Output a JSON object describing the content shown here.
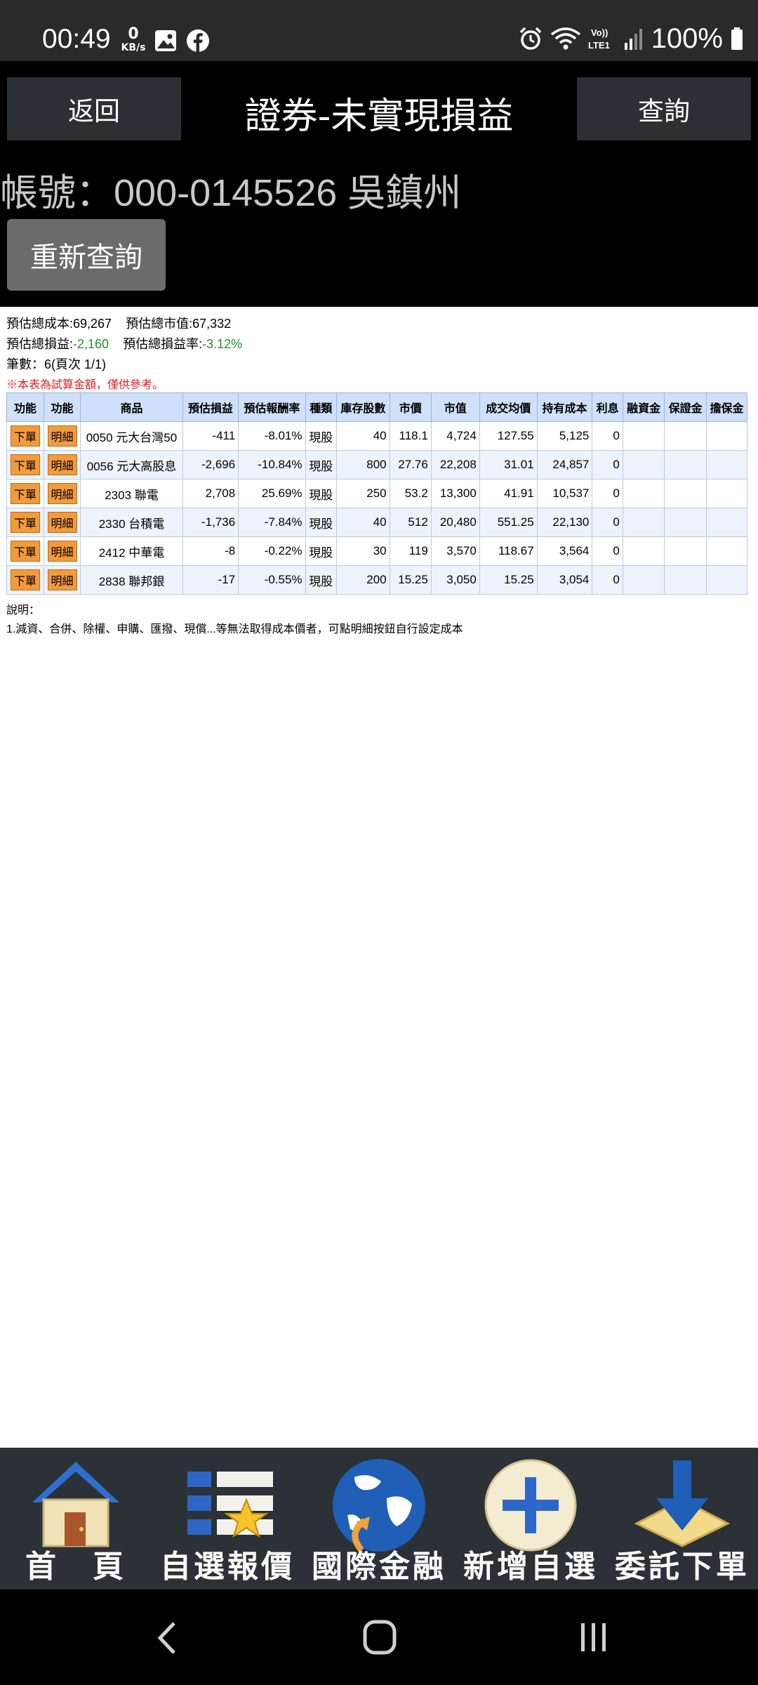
{
  "status_bar": {
    "time": "00:49",
    "net_speed_value": "0",
    "net_speed_unit": "KB/s",
    "battery": "100%"
  },
  "header": {
    "back_label": "返回",
    "title": "證券-未實現損益",
    "query_label": "查詢",
    "account": "帳號：000-0145526 吳鎮州",
    "requery_label": "重新查詢"
  },
  "summary": {
    "cost_label": "預估總成本:",
    "cost_value": "69,267",
    "market_label": "預估總市值:",
    "market_value": "67,332",
    "pnl_label": "預估總損益:",
    "pnl_value": "-2,160",
    "pnl_rate_label": "預估總損益率:",
    "pnl_rate_value": "-3.12%",
    "count_text": "筆數：6(頁次 1/1)",
    "disclaimer": "※本表為試算金額，僅供參考。"
  },
  "table": {
    "headers": [
      "功能",
      "功能",
      "商品",
      "預估損益",
      "預估報酬率",
      "種類",
      "庫存股數",
      "市價",
      "市值",
      "成交均價",
      "持有成本",
      "利息",
      "融資金",
      "保證金",
      "擔保金"
    ],
    "order_label": "下單",
    "detail_label": "明細",
    "rows": [
      {
        "product": "0050 元大台灣50",
        "pnl": "-411",
        "rate": "-8.01%",
        "kind": "現股",
        "qty": "40",
        "price": "118.1",
        "value": "4,724",
        "avg": "127.55",
        "cost": "5,125",
        "interest": "0",
        "trend": "neg"
      },
      {
        "product": "0056 元大高股息",
        "pnl": "-2,696",
        "rate": "-10.84%",
        "kind": "現股",
        "qty": "800",
        "price": "27.76",
        "value": "22,208",
        "avg": "31.01",
        "cost": "24,857",
        "interest": "0",
        "trend": "neg"
      },
      {
        "product": "2303 聯電",
        "pnl": "2,708",
        "rate": "25.69%",
        "kind": "現股",
        "qty": "250",
        "price": "53.2",
        "value": "13,300",
        "avg": "41.91",
        "cost": "10,537",
        "interest": "0",
        "trend": "pos"
      },
      {
        "product": "2330 台積電",
        "pnl": "-1,736",
        "rate": "-7.84%",
        "kind": "現股",
        "qty": "40",
        "price": "512",
        "value": "20,480",
        "avg": "551.25",
        "cost": "22,130",
        "interest": "0",
        "trend": "neg"
      },
      {
        "product": "2412 中華電",
        "pnl": "-8",
        "rate": "-0.22%",
        "kind": "現股",
        "qty": "30",
        "price": "119",
        "value": "3,570",
        "avg": "118.67",
        "cost": "3,564",
        "interest": "0",
        "trend": "neg"
      },
      {
        "product": "2838 聯邦銀",
        "pnl": "-17",
        "rate": "-0.55%",
        "kind": "現股",
        "qty": "200",
        "price": "15.25",
        "value": "3,050",
        "avg": "15.25",
        "cost": "3,054",
        "interest": "0",
        "trend": "neg"
      }
    ]
  },
  "explain": {
    "title": "說明：",
    "line1": "1.減資、合併、除權、申購、匯撥、現償...等無法取得成本價者，可點明細按鈕自行設定成本"
  },
  "bottom_nav": [
    {
      "label": "首　頁",
      "icon": "home-icon"
    },
    {
      "label": "自選報價",
      "icon": "watchlist-icon"
    },
    {
      "label": "國際金融",
      "icon": "globe-icon"
    },
    {
      "label": "新增自選",
      "icon": "add-icon"
    },
    {
      "label": "委託下單",
      "icon": "order-icon"
    }
  ],
  "colors": {
    "negative": "#2a8a2a",
    "positive": "#d92020",
    "table_header": "#cfe0f8",
    "tag_orange": "#f39a3c"
  }
}
